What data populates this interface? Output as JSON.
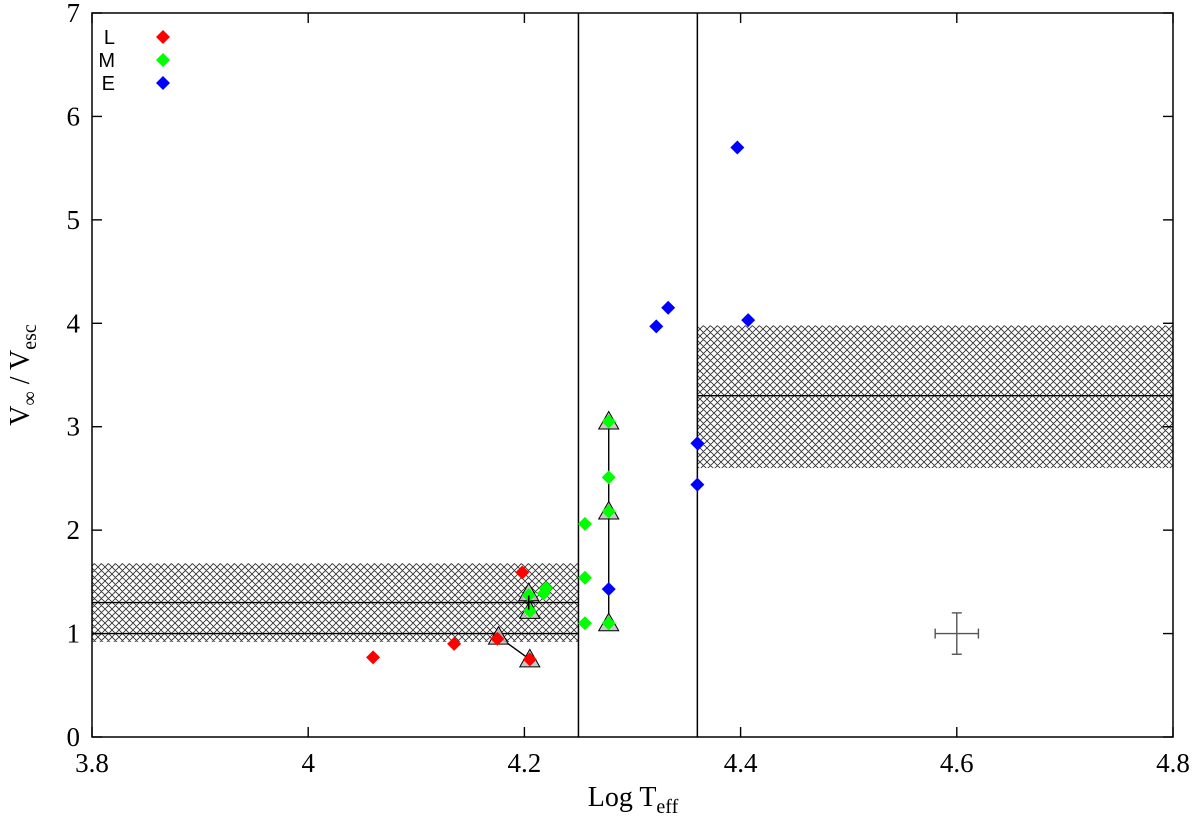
{
  "chart_data": {
    "type": "scatter",
    "title": "",
    "xlabel": {
      "main": "Log T",
      "sub": "eff"
    },
    "ylabel": {
      "main": "V",
      "main_sub": "∞",
      "sep": " / V",
      "sub": "esc"
    },
    "xlim": [
      3.8,
      4.8
    ],
    "ylim": [
      0,
      7
    ],
    "x_ticks": [
      "3.8",
      "4",
      "4.2",
      "4.4",
      "4.6",
      "4.8"
    ],
    "y_ticks": [
      "0",
      "1",
      "2",
      "3",
      "4",
      "5",
      "6",
      "7"
    ],
    "grid": false,
    "legend_position": "top-left",
    "series": [
      {
        "name": "L",
        "color": "#ff0000",
        "marker": "diamond",
        "points": [
          [
            4.06,
            0.77
          ],
          [
            4.135,
            0.9
          ],
          [
            4.175,
            0.95
          ],
          [
            4.198,
            1.59
          ],
          [
            4.205,
            0.75
          ]
        ]
      },
      {
        "name": "M",
        "color": "#00ff00",
        "marker": "diamond",
        "points": [
          [
            4.204,
            1.37
          ],
          [
            4.205,
            1.22
          ],
          [
            4.218,
            1.39
          ],
          [
            4.22,
            1.44
          ],
          [
            4.256,
            2.06
          ],
          [
            4.256,
            1.54
          ],
          [
            4.256,
            1.1
          ],
          [
            4.278,
            3.05
          ],
          [
            4.278,
            2.51
          ],
          [
            4.278,
            2.18
          ],
          [
            4.278,
            1.1
          ]
        ]
      },
      {
        "name": "E",
        "color": "#0000ff",
        "marker": "diamond",
        "points": [
          [
            4.278,
            1.43
          ],
          [
            4.322,
            3.97
          ],
          [
            4.333,
            4.15
          ],
          [
            4.36,
            2.84
          ],
          [
            4.36,
            2.44
          ],
          [
            4.397,
            5.7
          ],
          [
            4.407,
            4.03
          ]
        ]
      }
    ],
    "triangle_markers": [
      [
        4.176,
        0.97
      ],
      [
        4.205,
        0.75
      ],
      [
        4.204,
        1.39
      ],
      [
        4.205,
        1.22
      ],
      [
        4.278,
        3.05
      ],
      [
        4.278,
        2.18
      ],
      [
        4.278,
        1.1
      ]
    ],
    "connector_lines": [
      [
        [
          4.176,
          0.97
        ],
        [
          4.205,
          0.75
        ]
      ],
      [
        [
          4.278,
          1.1
        ],
        [
          4.278,
          3.05
        ]
      ]
    ],
    "vertical_lines": [
      4.25,
      4.36
    ],
    "bands": [
      {
        "x0": 3.8,
        "x1": 4.25,
        "y0": 0.92,
        "y1": 1.68,
        "lines": [
          1.0,
          1.3
        ]
      },
      {
        "x0": 4.36,
        "x1": 4.8,
        "y0": 2.6,
        "y1": 3.98,
        "lines": [
          3.3
        ]
      }
    ],
    "small_cross_errorbars": [
      [
        4.204,
        1.3
      ]
    ],
    "representative_error": {
      "x": 4.6,
      "y": 1.0,
      "dx": 0.02,
      "dy": 0.2
    }
  }
}
